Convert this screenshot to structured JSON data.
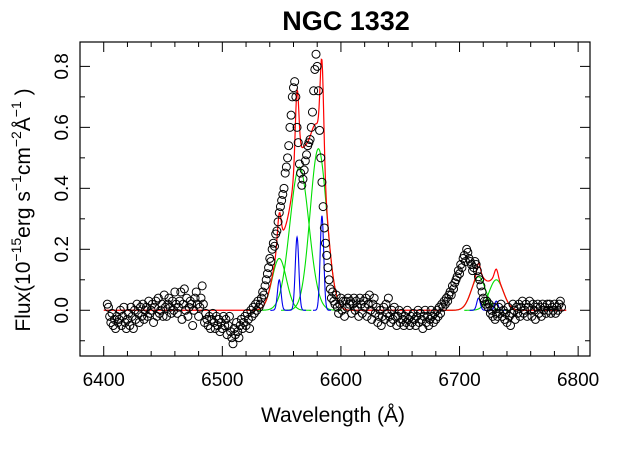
{
  "chart_data": {
    "type": "scatter",
    "title": "NGC 1332",
    "xlabel": "Wavelength (Å)",
    "ylabel": {
      "prefix": "Flux(10",
      "exp1": "−15",
      "mid1": "erg s",
      "exp2": "−1",
      "mid2": "cm",
      "exp3": "−2",
      "mid3": "Å",
      "exp4": "−1",
      "suffix": " )"
    },
    "xlim": [
      6380,
      6810
    ],
    "ylim": [
      -0.15,
      0.88
    ],
    "x_ticks": [
      6400,
      6500,
      6600,
      6700,
      6800
    ],
    "y_ticks": [
      0.0,
      0.2,
      0.4,
      0.6,
      0.8
    ],
    "y_tick_labels": [
      "0.0",
      "0.2",
      "0.4",
      "0.6",
      "0.8"
    ],
    "grid": false,
    "observed_points": [
      [
        6403,
        0.02
      ],
      [
        6404,
        0.01
      ],
      [
        6405,
        -0.02
      ],
      [
        6406,
        -0.04
      ],
      [
        6407,
        -0.01
      ],
      [
        6408,
        -0.05
      ],
      [
        6409,
        -0.03
      ],
      [
        6410,
        -0.06
      ],
      [
        6411,
        -0.02
      ],
      [
        6412,
        -0.04
      ],
      [
        6413,
        -0.03
      ],
      [
        6414,
        0.0
      ],
      [
        6415,
        -0.05
      ],
      [
        6416,
        -0.02
      ],
      [
        6417,
        0.01
      ],
      [
        6418,
        -0.04
      ],
      [
        6419,
        -0.06
      ],
      [
        6420,
        -0.03
      ],
      [
        6421,
        -0.01
      ],
      [
        6422,
        -0.05
      ],
      [
        6423,
        0.01
      ],
      [
        6424,
        -0.02
      ],
      [
        6425,
        -0.06
      ],
      [
        6426,
        0.0
      ],
      [
        6427,
        -0.03
      ],
      [
        6428,
        0.02
      ],
      [
        6429,
        -0.01
      ],
      [
        6430,
        -0.04
      ],
      [
        6431,
        0.01
      ],
      [
        6432,
        -0.02
      ],
      [
        6433,
        0.02
      ],
      [
        6434,
        -0.03
      ],
      [
        6435,
        0.0
      ],
      [
        6436,
        0.01
      ],
      [
        6437,
        -0.02
      ],
      [
        6438,
        0.03
      ],
      [
        6439,
        -0.01
      ],
      [
        6440,
        0.0
      ],
      [
        6441,
        0.02
      ],
      [
        6442,
        -0.04
      ],
      [
        6443,
        0.01
      ],
      [
        6444,
        0.03
      ],
      [
        6445,
        -0.02
      ],
      [
        6446,
        0.04
      ],
      [
        6447,
        -0.01
      ],
      [
        6448,
        0.0
      ],
      [
        6449,
        0.02
      ],
      [
        6450,
        -0.02
      ],
      [
        6451,
        0.05
      ],
      [
        6452,
        0.01
      ],
      [
        6453,
        -0.02
      ],
      [
        6454,
        0.02
      ],
      [
        6455,
        0.04
      ],
      [
        6456,
        0.01
      ],
      [
        6457,
        -0.01
      ],
      [
        6458,
        0.03
      ],
      [
        6459,
        0.0
      ],
      [
        6460,
        0.06
      ],
      [
        6461,
        0.02
      ],
      [
        6462,
        -0.01
      ],
      [
        6463,
        0.01
      ],
      [
        6464,
        0.03
      ],
      [
        6465,
        0.06
      ],
      [
        6466,
        -0.03
      ],
      [
        6467,
        0.02
      ],
      [
        6468,
        0.07
      ],
      [
        6469,
        0.0
      ],
      [
        6470,
        0.04
      ],
      [
        6471,
        -0.02
      ],
      [
        6472,
        0.01
      ],
      [
        6473,
        0.03
      ],
      [
        6474,
        0.02
      ],
      [
        6475,
        -0.05
      ],
      [
        6476,
        0.0
      ],
      [
        6477,
        0.04
      ],
      [
        6478,
        0.06
      ],
      [
        6479,
        0.02
      ],
      [
        6480,
        -0.02
      ],
      [
        6481,
        0.01
      ],
      [
        6482,
        0.04
      ],
      [
        6483,
        0.08
      ],
      [
        6484,
        0.02
      ],
      [
        6485,
        -0.04
      ],
      [
        6486,
        -0.01
      ],
      [
        6487,
        -0.03
      ],
      [
        6488,
        -0.05
      ],
      [
        6489,
        -0.02
      ],
      [
        6490,
        -0.06
      ],
      [
        6491,
        -0.03
      ],
      [
        6492,
        -0.01
      ],
      [
        6493,
        -0.04
      ],
      [
        6494,
        -0.06
      ],
      [
        6495,
        -0.02
      ],
      [
        6496,
        -0.05
      ],
      [
        6497,
        -0.03
      ],
      [
        6498,
        -0.07
      ],
      [
        6499,
        -0.04
      ],
      [
        6500,
        -0.06
      ],
      [
        6501,
        -0.02
      ],
      [
        6502,
        -0.05
      ],
      [
        6503,
        -0.03
      ],
      [
        6504,
        -0.08
      ],
      [
        6505,
        -0.05
      ],
      [
        6506,
        -0.02
      ],
      [
        6507,
        -0.07
      ],
      [
        6508,
        -0.09
      ],
      [
        6509,
        -0.11
      ],
      [
        6510,
        -0.06
      ],
      [
        6511,
        -0.08
      ],
      [
        6512,
        -0.04
      ],
      [
        6513,
        -0.07
      ],
      [
        6514,
        -0.09
      ],
      [
        6515,
        -0.05
      ],
      [
        6516,
        -0.03
      ],
      [
        6517,
        -0.06
      ],
      [
        6518,
        -0.04
      ],
      [
        6519,
        -0.02
      ],
      [
        6520,
        -0.05
      ],
      [
        6521,
        -0.01
      ],
      [
        6522,
        -0.03
      ],
      [
        6523,
        -0.06
      ],
      [
        6524,
        0.0
      ],
      [
        6525,
        -0.02
      ],
      [
        6526,
        0.01
      ],
      [
        6527,
        -0.01
      ],
      [
        6528,
        0.02
      ],
      [
        6529,
        0.0
      ],
      [
        6530,
        0.03
      ],
      [
        6531,
        0.01
      ],
      [
        6532,
        0.02
      ],
      [
        6533,
        0.04
      ],
      [
        6534,
        0.06
      ],
      [
        6535,
        0.05
      ],
      [
        6536,
        0.08
      ],
      [
        6537,
        0.1
      ],
      [
        6538,
        0.12
      ],
      [
        6539,
        0.14
      ],
      [
        6540,
        0.17
      ],
      [
        6541,
        0.16
      ],
      [
        6542,
        0.2
      ],
      [
        6543,
        0.22
      ],
      [
        6544,
        0.21
      ],
      [
        6545,
        0.25
      ],
      [
        6546,
        0.26
      ],
      [
        6547,
        0.29
      ],
      [
        6548,
        0.32
      ],
      [
        6549,
        0.34
      ],
      [
        6550,
        0.36
      ],
      [
        6551,
        0.38
      ],
      [
        6552,
        0.4
      ],
      [
        6553,
        0.45
      ],
      [
        6554,
        0.47
      ],
      [
        6555,
        0.5
      ],
      [
        6556,
        0.54
      ],
      [
        6557,
        0.6
      ],
      [
        6558,
        0.64
      ],
      [
        6559,
        0.7
      ],
      [
        6560,
        0.73
      ],
      [
        6561,
        0.75
      ],
      [
        6562,
        0.7
      ],
      [
        6563,
        0.6
      ],
      [
        6564,
        0.55
      ],
      [
        6565,
        0.48
      ],
      [
        6566,
        0.45
      ],
      [
        6567,
        0.41
      ],
      [
        6568,
        0.43
      ],
      [
        6569,
        0.46
      ],
      [
        6570,
        0.49
      ],
      [
        6571,
        0.51
      ],
      [
        6572,
        0.54
      ],
      [
        6573,
        0.55
      ],
      [
        6574,
        0.56
      ],
      [
        6575,
        0.6
      ],
      [
        6576,
        0.65
      ],
      [
        6577,
        0.72
      ],
      [
        6578,
        0.79
      ],
      [
        6579,
        0.84
      ],
      [
        6580,
        0.8
      ],
      [
        6581,
        0.72
      ],
      [
        6582,
        0.59
      ],
      [
        6583,
        0.5
      ],
      [
        6584,
        0.42
      ],
      [
        6585,
        0.34
      ],
      [
        6586,
        0.27
      ],
      [
        6587,
        0.22
      ],
      [
        6588,
        0.18
      ],
      [
        6589,
        0.14
      ],
      [
        6590,
        0.1
      ],
      [
        6591,
        0.07
      ],
      [
        6592,
        0.04
      ],
      [
        6593,
        0.06
      ],
      [
        6594,
        0.03
      ],
      [
        6595,
        0.02
      ],
      [
        6596,
        0.05
      ],
      [
        6597,
        0.01
      ],
      [
        6598,
        -0.01
      ],
      [
        6599,
        0.02
      ],
      [
        6600,
        0.04
      ],
      [
        6601,
        0.0
      ],
      [
        6602,
        0.03
      ],
      [
        6603,
        -0.02
      ],
      [
        6604,
        0.03
      ],
      [
        6605,
        0.01
      ],
      [
        6606,
        0.04
      ],
      [
        6607,
        0.02
      ],
      [
        6608,
        0.03
      ],
      [
        6609,
        -0.01
      ],
      [
        6610,
        0.02
      ],
      [
        6611,
        0.04
      ],
      [
        6612,
        0.0
      ],
      [
        6613,
        0.03
      ],
      [
        6614,
        0.01
      ],
      [
        6615,
        -0.02
      ],
      [
        6616,
        0.04
      ],
      [
        6617,
        0.02
      ],
      [
        6618,
        -0.01
      ],
      [
        6619,
        0.03
      ],
      [
        6620,
        0.01
      ],
      [
        6621,
        0.04
      ],
      [
        6622,
        -0.02
      ],
      [
        6623,
        0.02
      ],
      [
        6624,
        0.05
      ],
      [
        6625,
        0.0
      ],
      [
        6626,
        -0.03
      ],
      [
        6627,
        0.02
      ],
      [
        6628,
        0.04
      ],
      [
        6629,
        -0.01
      ],
      [
        6630,
        0.01
      ],
      [
        6631,
        -0.04
      ],
      [
        6632,
        -0.02
      ],
      [
        6633,
        0.0
      ],
      [
        6634,
        -0.05
      ],
      [
        6635,
        -0.02
      ],
      [
        6636,
        0.01
      ],
      [
        6637,
        -0.03
      ],
      [
        6638,
        0.02
      ],
      [
        6639,
        -0.01
      ],
      [
        6640,
        0.04
      ],
      [
        6641,
        -0.02
      ],
      [
        6642,
        -0.04
      ],
      [
        6643,
        0.0
      ],
      [
        6644,
        -0.03
      ],
      [
        6645,
        0.01
      ],
      [
        6646,
        -0.02
      ],
      [
        6647,
        -0.05
      ],
      [
        6648,
        -0.02
      ],
      [
        6649,
        0.0
      ],
      [
        6650,
        -0.04
      ],
      [
        6651,
        -0.01
      ],
      [
        6652,
        -0.03
      ],
      [
        6653,
        -0.05
      ],
      [
        6654,
        -0.02
      ],
      [
        6655,
        -0.04
      ],
      [
        6656,
        0.0
      ],
      [
        6657,
        -0.03
      ],
      [
        6658,
        -0.05
      ],
      [
        6659,
        -0.02
      ],
      [
        6660,
        -0.04
      ],
      [
        6661,
        -0.01
      ],
      [
        6662,
        -0.03
      ],
      [
        6663,
        -0.05
      ],
      [
        6664,
        -0.02
      ],
      [
        6665,
        0.0
      ],
      [
        6666,
        -0.04
      ],
      [
        6667,
        -0.01
      ],
      [
        6668,
        -0.03
      ],
      [
        6669,
        -0.06
      ],
      [
        6670,
        -0.02
      ],
      [
        6671,
        0.0
      ],
      [
        6672,
        -0.04
      ],
      [
        6673,
        -0.02
      ],
      [
        6674,
        -0.05
      ],
      [
        6675,
        -0.03
      ],
      [
        6676,
        0.0
      ],
      [
        6677,
        -0.02
      ],
      [
        6678,
        -0.04
      ],
      [
        6679,
        -0.01
      ],
      [
        6680,
        -0.03
      ],
      [
        6681,
        0.0
      ],
      [
        6682,
        -0.02
      ],
      [
        6683,
        0.01
      ],
      [
        6684,
        -0.01
      ],
      [
        6685,
        0.02
      ],
      [
        6686,
        0.01
      ],
      [
        6687,
        0.03
      ],
      [
        6688,
        0.02
      ],
      [
        6689,
        0.04
      ],
      [
        6690,
        0.03
      ],
      [
        6691,
        0.05
      ],
      [
        6692,
        0.06
      ],
      [
        6693,
        0.05
      ],
      [
        6694,
        0.08
      ],
      [
        6695,
        0.07
      ],
      [
        6696,
        0.09
      ],
      [
        6697,
        0.1
      ],
      [
        6698,
        0.11
      ],
      [
        6699,
        0.13
      ],
      [
        6700,
        0.12
      ],
      [
        6701,
        0.15
      ],
      [
        6702,
        0.14
      ],
      [
        6703,
        0.17
      ],
      [
        6704,
        0.18
      ],
      [
        6705,
        0.16
      ],
      [
        6706,
        0.2
      ],
      [
        6707,
        0.19
      ],
      [
        6708,
        0.17
      ],
      [
        6709,
        0.16
      ],
      [
        6710,
        0.15
      ],
      [
        6711,
        0.13
      ],
      [
        6712,
        0.14
      ],
      [
        6713,
        0.16
      ],
      [
        6714,
        0.15
      ],
      [
        6715,
        0.13
      ],
      [
        6716,
        0.11
      ],
      [
        6717,
        0.1
      ],
      [
        6718,
        0.08
      ],
      [
        6719,
        0.06
      ],
      [
        6720,
        0.04
      ],
      [
        6721,
        0.03
      ],
      [
        6722,
        0.02
      ],
      [
        6723,
        0.03
      ],
      [
        6724,
        0.01
      ],
      [
        6725,
        0.02
      ],
      [
        6726,
        -0.01
      ],
      [
        6727,
        0.0
      ],
      [
        6728,
        -0.02
      ],
      [
        6729,
        0.01
      ],
      [
        6730,
        -0.03
      ],
      [
        6731,
        -0.01
      ],
      [
        6732,
        -0.02
      ],
      [
        6733,
        0.01
      ],
      [
        6734,
        -0.01
      ],
      [
        6735,
        0.02
      ],
      [
        6736,
        -0.02
      ],
      [
        6737,
        0.0
      ],
      [
        6738,
        -0.03
      ],
      [
        6739,
        -0.01
      ],
      [
        6740,
        -0.04
      ],
      [
        6741,
        0.01
      ],
      [
        6742,
        -0.02
      ],
      [
        6743,
        -0.05
      ],
      [
        6744,
        -0.01
      ],
      [
        6745,
        0.02
      ],
      [
        6746,
        0.0
      ],
      [
        6747,
        -0.03
      ],
      [
        6748,
        0.01
      ],
      [
        6749,
        -0.01
      ],
      [
        6750,
        0.02
      ],
      [
        6751,
        -0.02
      ],
      [
        6752,
        0.01
      ],
      [
        6753,
        0.03
      ],
      [
        6754,
        -0.01
      ],
      [
        6755,
        0.0
      ],
      [
        6756,
        0.02
      ],
      [
        6757,
        -0.02
      ],
      [
        6758,
        0.01
      ],
      [
        6759,
        0.03
      ],
      [
        6760,
        0.0
      ],
      [
        6761,
        -0.02
      ],
      [
        6762,
        0.02
      ],
      [
        6763,
        0.0
      ],
      [
        6764,
        -0.03
      ],
      [
        6765,
        0.01
      ],
      [
        6766,
        0.02
      ],
      [
        6767,
        -0.01
      ],
      [
        6768,
        0.01
      ],
      [
        6769,
        -0.02
      ],
      [
        6770,
        0.02
      ],
      [
        6771,
        0.0
      ],
      [
        6772,
        0.01
      ],
      [
        6773,
        -0.01
      ],
      [
        6774,
        0.02
      ],
      [
        6775,
        0.0
      ],
      [
        6776,
        0.02
      ],
      [
        6777,
        -0.01
      ],
      [
        6778,
        0.01
      ],
      [
        6779,
        0.0
      ],
      [
        6780,
        0.02
      ],
      [
        6781,
        -0.01
      ],
      [
        6782,
        0.01
      ],
      [
        6783,
        0.0
      ],
      [
        6784,
        0.02
      ],
      [
        6785,
        0.03
      ],
      [
        6786,
        0.01
      ]
    ],
    "model": {
      "baseline": 0.0,
      "total_fit_color": "#ff0000",
      "broad_color": "#00e000",
      "narrow_color": "#0000ee",
      "point_color": "#000000",
      "broad_components": [
        {
          "center": 6548,
          "amplitude": 0.17,
          "sigma": 6
        },
        {
          "center": 6565,
          "amplitude": 0.47,
          "sigma": 8
        },
        {
          "center": 6581,
          "amplitude": 0.53,
          "sigma": 7
        },
        {
          "center": 6716,
          "amplitude": 0.11,
          "sigma": 6
        },
        {
          "center": 6731,
          "amplitude": 0.1,
          "sigma": 6
        }
      ],
      "narrow_components": [
        {
          "center": 6548,
          "amplitude": 0.1,
          "sigma": 1.5
        },
        {
          "center": 6563,
          "amplitude": 0.24,
          "sigma": 1.5
        },
        {
          "center": 6584,
          "amplitude": 0.31,
          "sigma": 1.5
        },
        {
          "center": 6716,
          "amplitude": 0.04,
          "sigma": 1.5
        },
        {
          "center": 6731,
          "amplitude": 0.03,
          "sigma": 1.5
        }
      ],
      "x_range": [
        6400,
        6790
      ]
    }
  }
}
